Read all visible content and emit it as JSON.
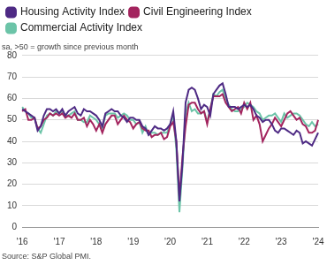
{
  "chart_data": {
    "type": "line",
    "subtitle": "sa, >50 = growth since previous month",
    "source": "Source: S&P Global PMI.",
    "categories": [
      "'16",
      null,
      null,
      null,
      null,
      null,
      null,
      null,
      null,
      null,
      null,
      null,
      "'17",
      null,
      null,
      null,
      null,
      null,
      null,
      null,
      null,
      null,
      null,
      null,
      "'18",
      null,
      null,
      null,
      null,
      null,
      null,
      null,
      null,
      null,
      null,
      null,
      "'19",
      null,
      null,
      null,
      null,
      null,
      null,
      null,
      null,
      null,
      null,
      null,
      "'20",
      null,
      null,
      null,
      null,
      null,
      null,
      null,
      null,
      null,
      null,
      null,
      "'21",
      null,
      null,
      null,
      null,
      null,
      null,
      null,
      null,
      null,
      null,
      null,
      "'22",
      null,
      null,
      null,
      null,
      null,
      null,
      null,
      null,
      null,
      null,
      null,
      "'23",
      null,
      null,
      null,
      null,
      null,
      null,
      null,
      null,
      null,
      null,
      null,
      "'24"
    ],
    "series": [
      {
        "name": "Housing Activity Index",
        "color": "#4e2a84",
        "values": [
          55,
          54,
          53,
          52,
          51,
          45,
          47,
          52,
          55,
          55,
          54,
          55,
          53,
          55,
          52,
          54,
          55,
          56,
          53,
          52,
          55,
          54,
          54,
          53,
          52,
          50,
          47,
          53,
          54,
          55,
          54,
          54,
          52,
          51,
          49,
          51,
          51,
          50,
          50,
          47,
          46,
          43,
          45,
          47,
          46,
          46,
          45,
          46,
          48,
          54,
          40,
          12,
          30,
          58,
          64,
          65,
          64,
          60,
          55,
          57,
          56,
          52,
          62,
          64,
          66,
          67,
          62,
          56,
          56,
          56,
          55,
          56,
          57,
          56,
          57,
          55,
          52,
          51,
          49,
          50,
          50,
          48,
          45,
          44,
          46,
          46,
          45,
          44,
          43,
          45,
          44,
          39,
          40,
          39,
          38,
          41,
          44
        ]
      },
      {
        "name": "Civil Engineering Index",
        "color": "#a3245e",
        "values": [
          54,
          55,
          50,
          50,
          51,
          46,
          47,
          50,
          51,
          53,
          52,
          53,
          52,
          53,
          51,
          52,
          51,
          53,
          50,
          50,
          51,
          47,
          50,
          48,
          45,
          48,
          44,
          48,
          50,
          52,
          52,
          48,
          50,
          52,
          50,
          49,
          46,
          48,
          49,
          46,
          45,
          45,
          42,
          43,
          43,
          44,
          41,
          42,
          47,
          49,
          40,
          14,
          33,
          47,
          57,
          58,
          58,
          55,
          53,
          54,
          48,
          55,
          61,
          61,
          61,
          62,
          58,
          56,
          54,
          55,
          56,
          53,
          58,
          55,
          58,
          50,
          52,
          48,
          40,
          43,
          46,
          48,
          51,
          49,
          47,
          50,
          53,
          54,
          52,
          50,
          51,
          48,
          47,
          44,
          44,
          45,
          50
        ]
      },
      {
        "name": "Commercial Activity Index",
        "color": "#6cc4a8",
        "values": [
          56,
          54,
          53,
          51,
          51,
          46,
          44,
          48,
          52,
          53,
          52,
          54,
          53,
          54,
          52,
          52,
          53,
          54,
          50,
          50,
          49,
          49,
          52,
          51,
          50,
          48,
          46,
          52,
          53,
          53,
          53,
          51,
          52,
          53,
          52,
          50,
          50,
          48,
          49,
          44,
          47,
          43,
          44,
          44,
          43,
          44,
          44,
          44,
          48,
          52,
          36,
          7,
          28,
          53,
          58,
          54,
          55,
          53,
          53,
          54,
          49,
          55,
          62,
          61,
          63,
          64,
          60,
          57,
          55,
          54,
          54,
          55,
          56,
          58,
          57,
          56,
          54,
          53,
          50,
          51,
          52,
          52,
          53,
          51,
          49,
          53,
          51,
          52,
          53,
          53,
          52,
          50,
          48,
          47,
          49,
          47,
          48
        ]
      }
    ],
    "ylim": [
      0,
      80
    ],
    "yticks": [
      0,
      10,
      20,
      30,
      40,
      50,
      60,
      70,
      80
    ],
    "grid": true,
    "legend": "top"
  }
}
